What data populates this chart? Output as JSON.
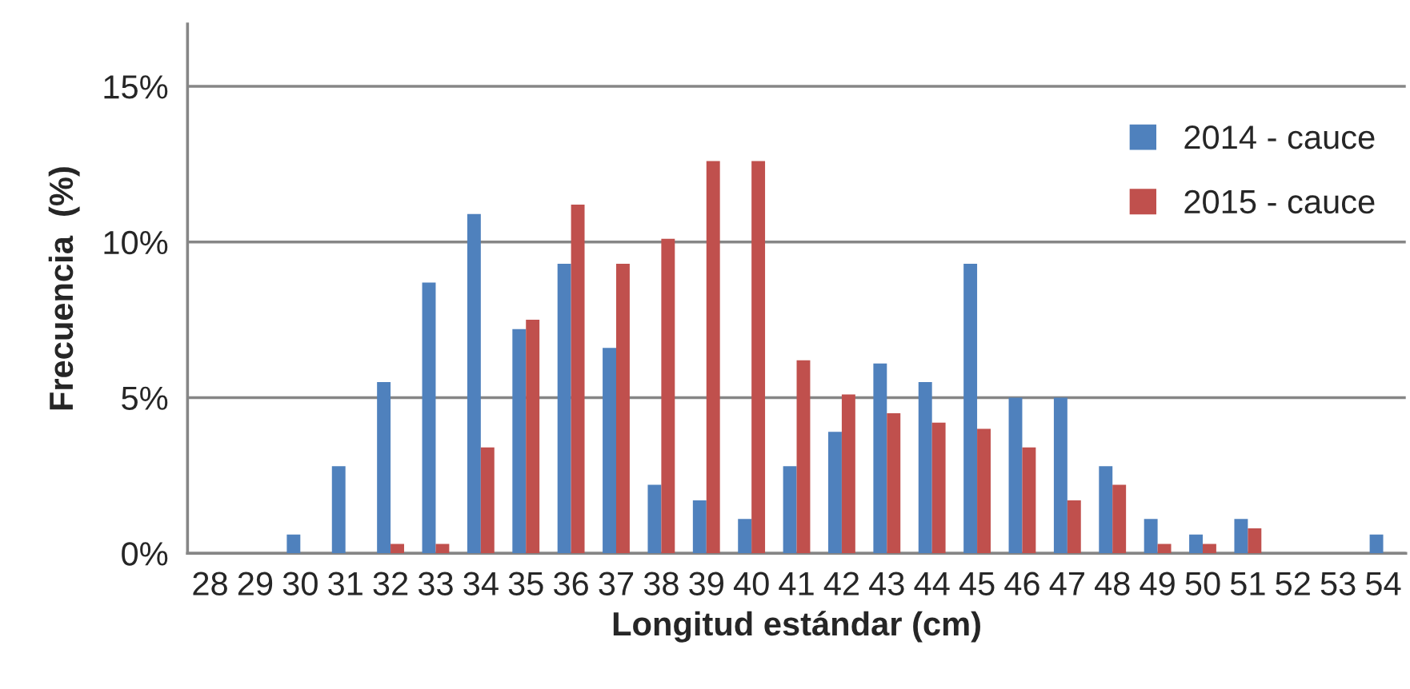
{
  "chart_data": {
    "type": "bar",
    "xlabel": "Longitud estándar (cm)",
    "ylabel": "Frecuencia  (%)",
    "categories": [
      "28",
      "29",
      "30",
      "31",
      "32",
      "33",
      "34",
      "35",
      "36",
      "37",
      "38",
      "39",
      "40",
      "41",
      "42",
      "43",
      "44",
      "45",
      "46",
      "47",
      "48",
      "49",
      "50",
      "51",
      "52",
      "53",
      "54"
    ],
    "series": [
      {
        "name": "2014 - cauce",
        "color": "#4f81bd",
        "values": [
          0,
          0,
          0.6,
          2.8,
          5.5,
          8.7,
          10.9,
          7.2,
          9.3,
          6.6,
          2.2,
          1.7,
          1.1,
          2.8,
          3.9,
          6.1,
          5.5,
          9.3,
          5.0,
          5.0,
          2.8,
          1.1,
          0.6,
          1.1,
          0,
          0,
          0.6
        ]
      },
      {
        "name": "2015 - cauce",
        "color": "#c0504d",
        "values": [
          0,
          0,
          0,
          0,
          0.3,
          0.3,
          3.4,
          7.5,
          11.2,
          9.3,
          10.1,
          12.6,
          12.6,
          6.2,
          5.1,
          4.5,
          4.2,
          4.0,
          3.4,
          1.7,
          2.2,
          0.3,
          0.3,
          0.8,
          0,
          0,
          0
        ]
      }
    ],
    "ylim": [
      0,
      17
    ],
    "yticks": [
      {
        "value": 0,
        "label": "0%"
      },
      {
        "value": 5,
        "label": "5%"
      },
      {
        "value": 10,
        "label": "10%"
      },
      {
        "value": 15,
        "label": "15%"
      }
    ],
    "grid": "y",
    "legend": "right"
  }
}
